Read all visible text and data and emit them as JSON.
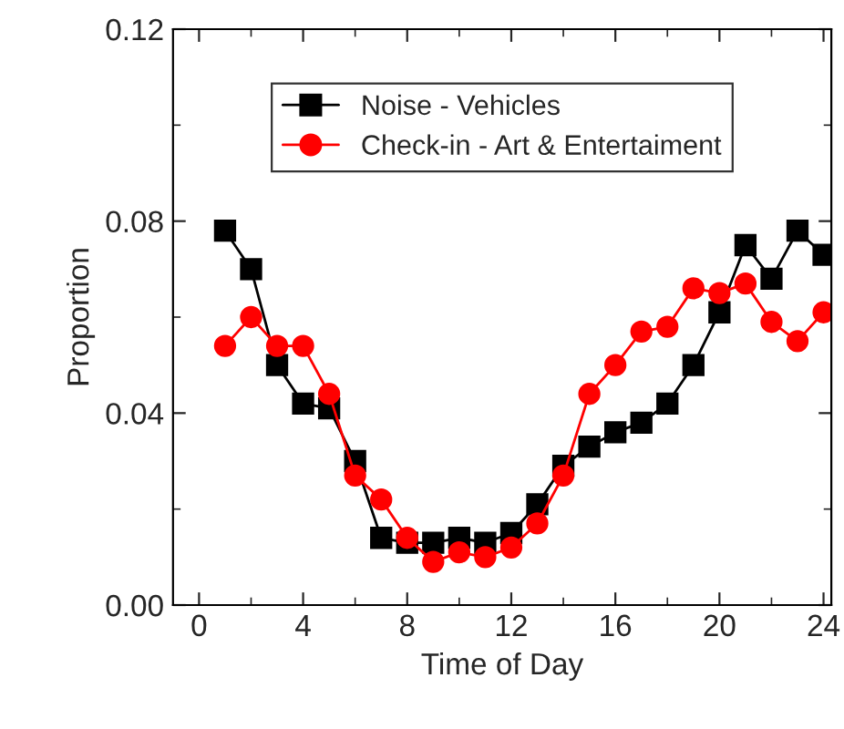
{
  "chart_data": {
    "type": "line",
    "xlabel": "Time of Day",
    "ylabel": "Proportion",
    "x": [
      1,
      2,
      3,
      4,
      5,
      6,
      7,
      8,
      9,
      10,
      11,
      12,
      13,
      14,
      15,
      16,
      17,
      18,
      19,
      20,
      21,
      22,
      23,
      24
    ],
    "series": [
      {
        "name": "Noise - Vehicles",
        "color": "#000000",
        "marker": "square",
        "values": [
          0.078,
          0.07,
          0.05,
          0.042,
          0.041,
          0.03,
          0.014,
          0.013,
          0.013,
          0.014,
          0.013,
          0.015,
          0.021,
          0.029,
          0.033,
          0.036,
          0.038,
          0.042,
          0.05,
          0.061,
          0.075,
          0.068,
          0.078,
          0.073
        ]
      },
      {
        "name": "Check-in - Art & Entertaiment",
        "color": "#ff0000",
        "marker": "circle",
        "values": [
          0.054,
          0.06,
          0.054,
          0.054,
          0.044,
          0.027,
          0.022,
          0.014,
          0.009,
          0.011,
          0.01,
          0.012,
          0.017,
          0.027,
          0.044,
          0.05,
          0.057,
          0.058,
          0.066,
          0.065,
          0.067,
          0.059,
          0.055,
          0.061
        ]
      }
    ],
    "xlim": [
      -1,
      24.3
    ],
    "xticks": [
      0,
      4,
      8,
      12,
      16,
      20,
      24
    ],
    "ylim": [
      0,
      0.12
    ],
    "yticks": [
      {
        "value": 0,
        "label": "0.00"
      },
      {
        "value": 0.04,
        "label": "0.04"
      },
      {
        "value": 0.08,
        "label": "0.08"
      },
      {
        "value": 0.12,
        "label": "0.12"
      }
    ],
    "legend": "top",
    "grid": false
  }
}
